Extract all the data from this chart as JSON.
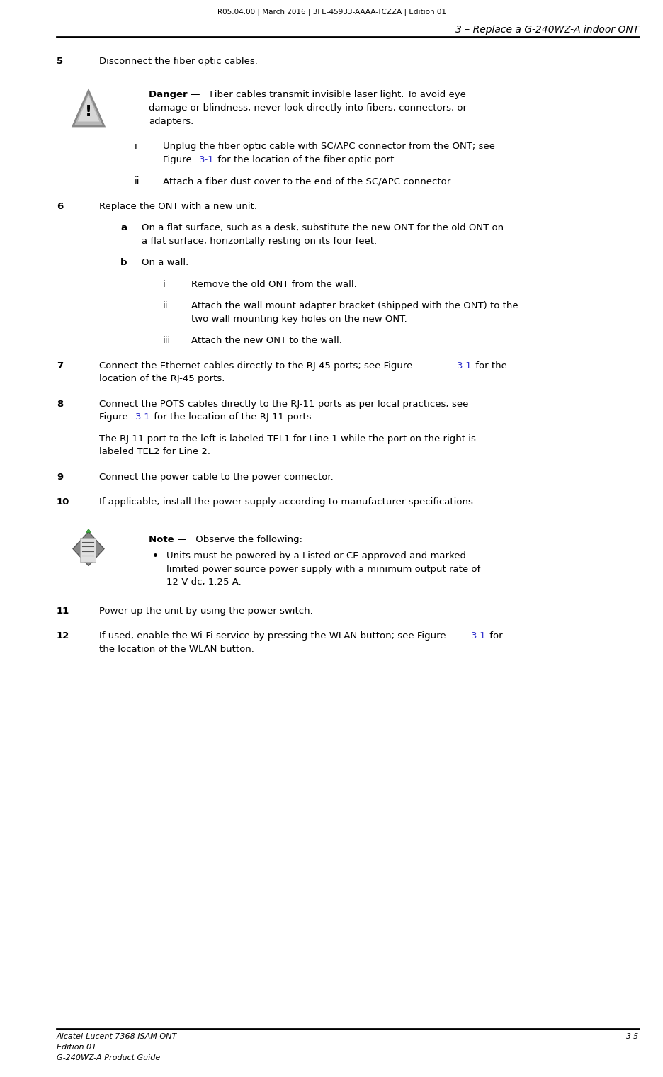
{
  "page_width": 9.37,
  "page_height": 15.2,
  "bg_color": "#ffffff",
  "top_header_text": "R05.04.00 | March 2016 | 3FE-45933-AAAA-TCZZA | Edition 01",
  "top_header_right_text": "3 – Replace a G-240WZ-A indoor ONT",
  "footer_left_line1": "Alcatel-Lucent 7368 ISAM ONT",
  "footer_left_line2": "Edition 01",
  "footer_left_line3": "G-240WZ-A Product Guide",
  "footer_right_text": "3-5",
  "link_color": "#3333cc",
  "text_color": "#000000"
}
